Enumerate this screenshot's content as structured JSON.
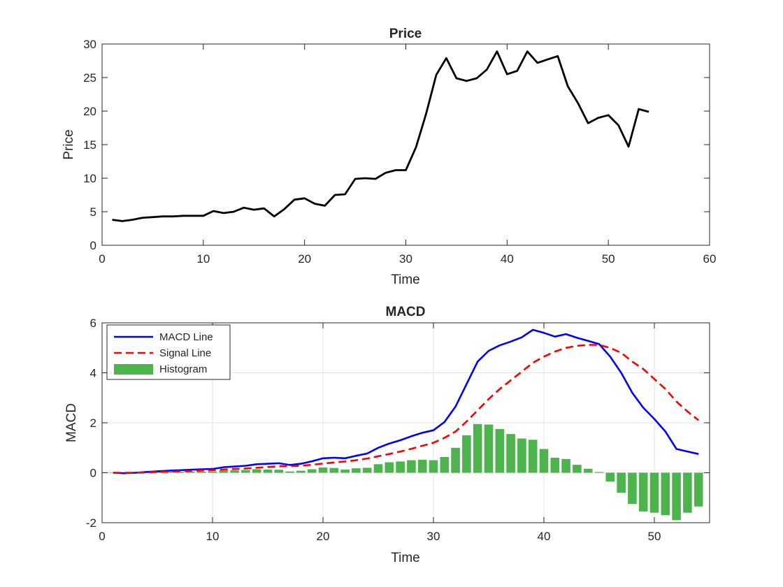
{
  "chart_data": [
    {
      "type": "line",
      "title": "Price",
      "xlabel": "Time",
      "ylabel": "Price",
      "xlim": [
        0,
        60
      ],
      "ylim": [
        0,
        30
      ],
      "xticks": [
        0,
        10,
        20,
        30,
        40,
        50,
        60
      ],
      "yticks": [
        0,
        5,
        10,
        15,
        20,
        25,
        30
      ],
      "grid": false,
      "series": [
        {
          "color": "#000000",
          "x": [
            1,
            2,
            3,
            4,
            5,
            6,
            7,
            8,
            9,
            10,
            11,
            12,
            13,
            14,
            15,
            16,
            17,
            18,
            19,
            20,
            21,
            22,
            23,
            24,
            25,
            26,
            27,
            28,
            29,
            30,
            31,
            32,
            33,
            34,
            35,
            36,
            37,
            38,
            39,
            40,
            41,
            42,
            43,
            44,
            45,
            46,
            47,
            48,
            49,
            50,
            51,
            52,
            53,
            54
          ],
          "y": [
            3.8,
            3.6,
            3.8,
            4.1,
            4.2,
            4.3,
            4.3,
            4.4,
            4.4,
            4.4,
            5.1,
            4.8,
            5.0,
            5.6,
            5.3,
            5.5,
            4.3,
            5.4,
            6.8,
            7.0,
            6.2,
            5.9,
            7.5,
            7.6,
            9.9,
            10.0,
            9.9,
            10.8,
            11.2,
            11.2,
            14.6,
            19.6,
            25.4,
            27.9,
            24.9,
            24.5,
            24.9,
            26.2,
            28.9,
            25.5,
            26.0,
            28.9,
            27.2,
            27.7,
            28.2,
            23.7,
            21.2,
            18.2,
            19.0,
            19.4,
            17.9,
            14.7,
            20.3,
            19.9
          ]
        }
      ]
    },
    {
      "type": "line",
      "title": "MACD",
      "xlabel": "Time",
      "ylabel": "MACD",
      "xlim": [
        0,
        55
      ],
      "ylim": [
        -2,
        6
      ],
      "xticks": [
        0,
        10,
        20,
        30,
        40,
        50
      ],
      "yticks": [
        -2,
        0,
        2,
        4,
        6
      ],
      "grid": true,
      "legend_position": "top-left",
      "x": [
        1,
        2,
        3,
        4,
        5,
        6,
        7,
        8,
        9,
        10,
        11,
        12,
        13,
        14,
        15,
        16,
        17,
        18,
        19,
        20,
        21,
        22,
        23,
        24,
        25,
        26,
        27,
        28,
        29,
        30,
        31,
        32,
        33,
        34,
        35,
        36,
        37,
        38,
        39,
        40,
        41,
        42,
        43,
        44,
        45,
        46,
        47,
        48,
        49,
        50,
        51,
        52,
        53,
        54
      ],
      "series": [
        {
          "name": "MACD Line",
          "type": "line",
          "color": "#0000ff",
          "style": "solid",
          "values": [
            0.0,
            -0.02,
            0.0,
            0.03,
            0.06,
            0.08,
            0.1,
            0.12,
            0.14,
            0.15,
            0.22,
            0.25,
            0.28,
            0.34,
            0.36,
            0.38,
            0.31,
            0.36,
            0.46,
            0.58,
            0.6,
            0.58,
            0.68,
            0.77,
            1.0,
            1.17,
            1.3,
            1.46,
            1.6,
            1.7,
            2.03,
            2.65,
            3.55,
            4.45,
            4.88,
            5.1,
            5.25,
            5.42,
            5.72,
            5.6,
            5.45,
            5.55,
            5.4,
            5.28,
            5.15,
            4.65,
            4.0,
            3.2,
            2.6,
            2.15,
            1.65,
            0.95,
            0.85,
            0.75
          ]
        },
        {
          "name": "Signal Line",
          "type": "line",
          "color": "#ff0000",
          "style": "dashed",
          "values": [
            0.0,
            0.0,
            0.0,
            0.01,
            0.03,
            0.04,
            0.06,
            0.07,
            0.09,
            0.1,
            0.13,
            0.15,
            0.17,
            0.2,
            0.23,
            0.26,
            0.26,
            0.28,
            0.32,
            0.37,
            0.41,
            0.45,
            0.5,
            0.57,
            0.66,
            0.75,
            0.85,
            0.96,
            1.08,
            1.2,
            1.4,
            1.65,
            2.05,
            2.5,
            2.95,
            3.35,
            3.7,
            4.05,
            4.4,
            4.65,
            4.85,
            5.0,
            5.08,
            5.12,
            5.12,
            5.0,
            4.8,
            4.45,
            4.15,
            3.75,
            3.35,
            2.85,
            2.45,
            2.1
          ]
        },
        {
          "name": "Histogram",
          "type": "bar",
          "color": "#4db34d",
          "values": [
            0.0,
            -0.02,
            0.0,
            0.02,
            0.03,
            0.04,
            0.04,
            0.05,
            0.05,
            0.05,
            0.09,
            0.1,
            0.11,
            0.14,
            0.13,
            0.12,
            0.05,
            0.08,
            0.14,
            0.21,
            0.19,
            0.13,
            0.18,
            0.2,
            0.34,
            0.42,
            0.45,
            0.5,
            0.52,
            0.5,
            0.63,
            1.0,
            1.5,
            1.95,
            1.93,
            1.75,
            1.55,
            1.37,
            1.32,
            0.95,
            0.6,
            0.55,
            0.32,
            0.16,
            0.03,
            -0.35,
            -0.8,
            -1.25,
            -1.55,
            -1.6,
            -1.7,
            -1.9,
            -1.6,
            -1.35
          ]
        }
      ]
    }
  ]
}
